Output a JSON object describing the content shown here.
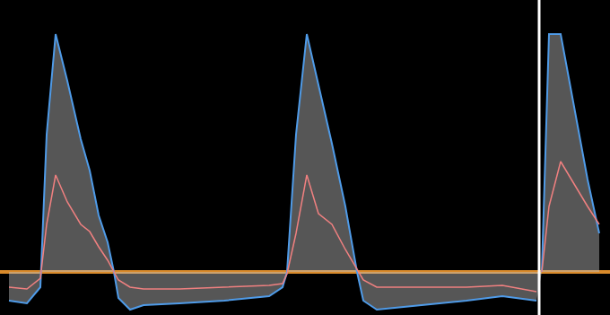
{
  "chart_data": {
    "type": "line",
    "x": [
      10,
      30,
      45,
      52,
      62,
      75,
      90,
      100,
      110,
      120,
      127,
      132,
      145,
      160,
      200,
      250,
      300,
      315,
      320,
      330,
      342,
      355,
      370,
      385,
      398,
      405,
      420,
      470,
      520,
      560,
      598,
      601,
      604,
      612,
      625,
      640,
      655,
      668
    ],
    "xlim": [
      0,
      680
    ],
    "ylim": [
      -48,
      303
    ],
    "tick_labels": false,
    "grid": false,
    "baseline": 0,
    "cursor": 601,
    "series": [
      {
        "color": "#4f9be8",
        "values": [
          -32,
          -35,
          -17,
          153,
          265,
          213,
          148,
          113,
          63,
          33,
          0,
          -29,
          -42,
          -37,
          -35,
          -32,
          -27,
          -17,
          0,
          153,
          265,
          208,
          143,
          73,
          0,
          -32,
          -42,
          -37,
          -32,
          -27,
          -32,
          null,
          0,
          265,
          265,
          183,
          103,
          43
        ]
      },
      {
        "color": "#f08080",
        "values": [
          -17,
          -19,
          -7,
          53,
          108,
          78,
          53,
          45,
          28,
          13,
          0,
          -9,
          -17,
          -19,
          -19,
          -17,
          -15,
          -13,
          -2,
          43,
          108,
          65,
          53,
          25,
          3,
          -9,
          -17,
          -17,
          -17,
          -15,
          -22,
          null,
          0,
          73,
          123,
          98,
          73,
          53
        ]
      }
    ]
  }
}
